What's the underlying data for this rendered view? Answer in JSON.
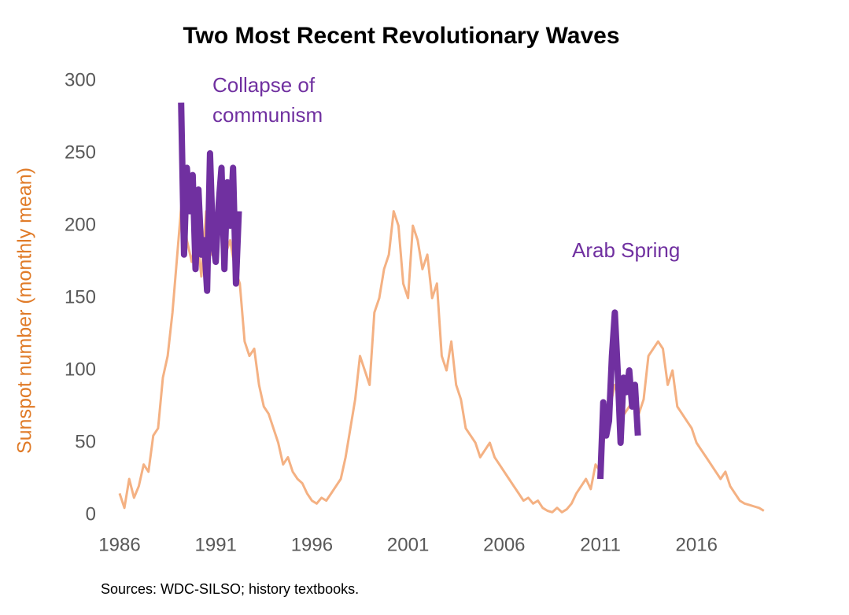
{
  "chart_data": {
    "type": "line",
    "title": "Two Most Recent Revolutionary Waves",
    "y_label": "Sunspot number (monthly mean)",
    "source": "Sources:  WDC-SILSO; history textbooks.",
    "xlim": [
      1986,
      2020
    ],
    "ylim": [
      0,
      300
    ],
    "xticks": [
      1986,
      1991,
      1996,
      2001,
      2006,
      2011,
      2016
    ],
    "yticks": [
      0,
      50,
      100,
      150,
      200,
      250,
      300
    ],
    "grid": false,
    "series": [
      {
        "color": "#f4b183",
        "x": [
          1986,
          1986.25,
          1986.5,
          1986.75,
          1987,
          1987.25,
          1987.5,
          1987.75,
          1988,
          1988.25,
          1988.5,
          1988.75,
          1989,
          1989.25,
          1989.5,
          1989.75,
          1990,
          1990.25,
          1990.5,
          1990.75,
          1991,
          1991.25,
          1991.5,
          1991.75,
          1992,
          1992.25,
          1992.5,
          1992.75,
          1993,
          1993.25,
          1993.5,
          1993.75,
          1994,
          1994.25,
          1994.5,
          1994.75,
          1995,
          1995.25,
          1995.5,
          1995.75,
          1996,
          1996.25,
          1996.5,
          1996.75,
          1997,
          1997.25,
          1997.5,
          1997.75,
          1998,
          1998.25,
          1998.5,
          1998.75,
          1999,
          1999.25,
          1999.5,
          1999.75,
          2000,
          2000.25,
          2000.5,
          2000.75,
          2001,
          2001.25,
          2001.5,
          2001.75,
          2002,
          2002.25,
          2002.5,
          2002.75,
          2003,
          2003.25,
          2003.5,
          2003.75,
          2004,
          2004.25,
          2004.5,
          2004.75,
          2005,
          2005.25,
          2005.5,
          2005.75,
          2006,
          2006.25,
          2006.5,
          2006.75,
          2007,
          2007.25,
          2007.5,
          2007.75,
          2008,
          2008.25,
          2008.5,
          2008.75,
          2009,
          2009.25,
          2009.5,
          2009.75,
          2010,
          2010.25,
          2010.5,
          2010.75,
          2011,
          2011.25,
          2011.5,
          2011.75,
          2012,
          2012.25,
          2012.5,
          2012.75,
          2013,
          2013.25,
          2013.5,
          2013.75,
          2014,
          2014.25,
          2014.5,
          2014.75,
          2015,
          2015.25,
          2015.5,
          2015.75,
          2016,
          2016.25,
          2016.5,
          2016.75,
          2017,
          2017.25,
          2017.5,
          2017.75,
          2018,
          2018.25,
          2018.5,
          2018.75,
          2019,
          2019.25,
          2019.5
        ],
        "values": [
          15,
          5,
          25,
          12,
          20,
          35,
          30,
          55,
          60,
          95,
          110,
          140,
          180,
          220,
          190,
          175,
          195,
          165,
          210,
          180,
          200,
          215,
          180,
          190,
          170,
          160,
          120,
          110,
          115,
          90,
          75,
          70,
          60,
          50,
          35,
          40,
          30,
          25,
          22,
          15,
          10,
          8,
          12,
          10,
          15,
          20,
          25,
          40,
          60,
          80,
          110,
          100,
          90,
          140,
          150,
          170,
          180,
          210,
          200,
          160,
          150,
          200,
          190,
          170,
          180,
          150,
          160,
          110,
          100,
          120,
          90,
          80,
          60,
          55,
          50,
          40,
          45,
          50,
          40,
          35,
          30,
          25,
          20,
          15,
          10,
          12,
          8,
          10,
          5,
          3,
          2,
          5,
          2,
          4,
          8,
          15,
          20,
          25,
          18,
          35,
          30,
          60,
          75,
          90,
          80,
          70,
          75,
          80,
          70,
          80,
          110,
          115,
          120,
          115,
          90,
          100,
          75,
          70,
          65,
          60,
          50,
          45,
          40,
          35,
          30,
          25,
          30,
          20,
          15,
          10,
          8,
          7,
          6,
          5,
          3
        ]
      },
      {
        "name": "Collapse of communism",
        "color": "#7030a0",
        "x": [
          1989.2,
          1989.35,
          1989.5,
          1989.65,
          1989.8,
          1989.95,
          1990.1,
          1990.25,
          1990.4,
          1990.55,
          1990.7,
          1990.85,
          1991,
          1991.15,
          1991.3,
          1991.45,
          1991.6,
          1991.75,
          1991.9,
          1992.05,
          1992.2
        ],
        "values": [
          285,
          180,
          240,
          210,
          235,
          170,
          225,
          180,
          190,
          155,
          250,
          190,
          175,
          215,
          240,
          170,
          230,
          200,
          240,
          160,
          210
        ]
      },
      {
        "name": "Arab Spring",
        "color": "#7030a0",
        "x": [
          2011,
          2011.15,
          2011.3,
          2011.45,
          2011.6,
          2011.75,
          2011.9,
          2012.05,
          2012.2,
          2012.35,
          2012.5,
          2012.65,
          2012.8,
          2012.95
        ],
        "values": [
          25,
          78,
          55,
          65,
          110,
          140,
          100,
          50,
          95,
          85,
          100,
          75,
          90,
          55
        ]
      }
    ]
  }
}
